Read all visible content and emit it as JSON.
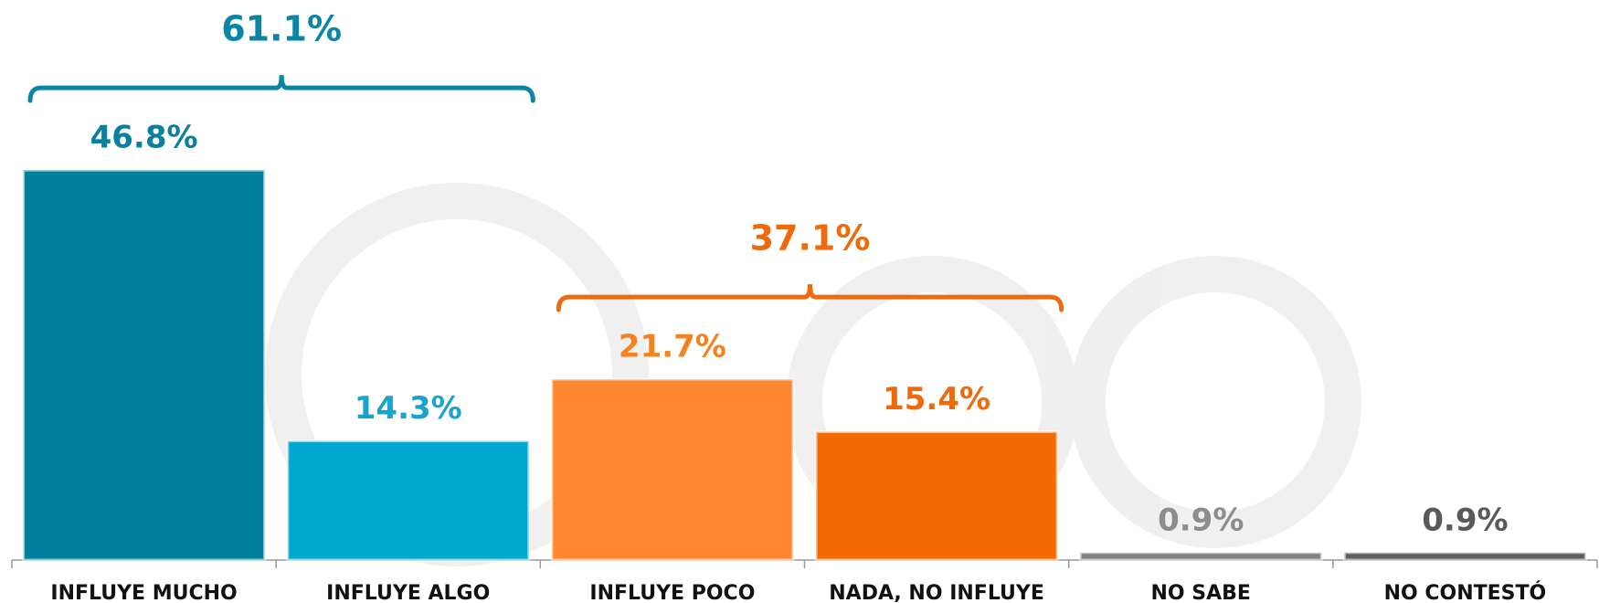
{
  "chart_data": {
    "type": "bar",
    "categories": [
      "INFLUYE MUCHO",
      "INFLUYE ALGO",
      "INFLUYE POCO",
      "NADA, NO INFLUYE",
      "NO SABE",
      "NO CONTESTÓ"
    ],
    "values": [
      46.8,
      14.3,
      21.7,
      15.4,
      0.9,
      0.9
    ],
    "value_labels": [
      "46.8%",
      "14.3%",
      "21.7%",
      "15.4%",
      "0.9%",
      "0.9%"
    ],
    "colors": [
      "#00809e",
      "#00a8cf",
      "#fd8630",
      "#f26a00",
      "#808080",
      "#606060"
    ],
    "label_colors": [
      "#0a7f9e",
      "#1aa3cc",
      "#f58220",
      "#ee6a0a",
      "#8c8c8c",
      "#595959"
    ],
    "annotations": [
      {
        "text": "61.1%",
        "color": "#0a85a3",
        "span": [
          0,
          1
        ]
      },
      {
        "text": "37.1%",
        "color": "#ee6a0a",
        "span": [
          2,
          3
        ]
      }
    ]
  }
}
